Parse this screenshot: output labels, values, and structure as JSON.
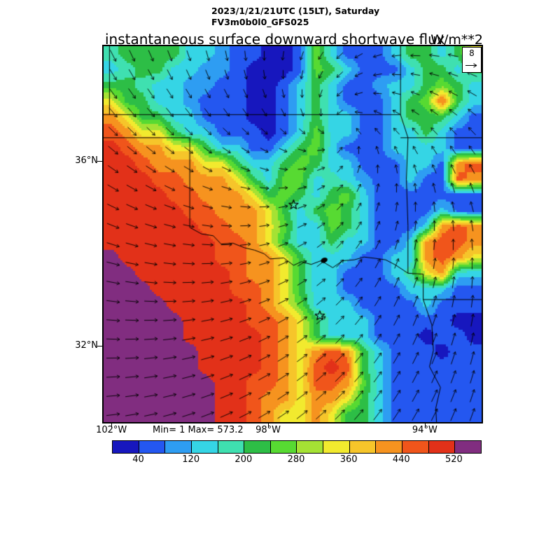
{
  "chart_data": {
    "type": "heatmap",
    "datetime": "2023/1/21/21UTC (15LT), Saturday",
    "model": "FV3m0b0l0_GFS025",
    "title": "instantaneous surface downward shortwave flux",
    "units": "W/m**2",
    "min": 1,
    "max": 573.2,
    "minmax_label": "Min= 1 Max= 573.2",
    "lon_range": [
      -102.2,
      -92.55
    ],
    "lat_range": [
      30.35,
      38.48
    ],
    "lon_ticks": [
      {
        "lon": -102,
        "label": "102°W"
      },
      {
        "lon": -98,
        "label": "98°W"
      },
      {
        "lon": -94,
        "label": "94°W"
      }
    ],
    "lat_ticks": [
      {
        "lat": 36,
        "label": "36°N"
      },
      {
        "lat": 32,
        "label": "32°N"
      }
    ],
    "levels": [
      0,
      40,
      80,
      120,
      160,
      200,
      240,
      280,
      320,
      360,
      400,
      440,
      480,
      520,
      560
    ],
    "colors": [
      "#1717BE",
      "#2457F0",
      "#2E9DF2",
      "#35D5E5",
      "#3FE0B0",
      "#2DBE46",
      "#57DA32",
      "#A5E234",
      "#F2EA2E",
      "#F6C52A",
      "#F6931F",
      "#F0551B",
      "#E23119",
      "#812D80"
    ],
    "colorbar_ticks": [
      {
        "value": 40,
        "label": "40"
      },
      {
        "value": 120,
        "label": "120"
      },
      {
        "value": 200,
        "label": "200"
      },
      {
        "value": 280,
        "label": "280"
      },
      {
        "value": 360,
        "label": "360"
      },
      {
        "value": 440,
        "label": "440"
      },
      {
        "value": 520,
        "label": "520"
      }
    ],
    "wind": {
      "ref_label": "8",
      "center": [
        0.62,
        0.22
      ],
      "inward": 1.0,
      "spacing_px": 27,
      "len_min": 10,
      "len_max": 19
    },
    "markers": {
      "stars": [
        [
          -97.35,
          35.05
        ],
        [
          -96.68,
          32.65
        ]
      ],
      "lake": [
        -96.57,
        33.85
      ]
    },
    "borders": [
      [
        [
          -102.2,
          37
        ],
        [
          -94.62,
          37
        ]
      ],
      [
        [
          -102.05,
          38.48
        ],
        [
          -102.05,
          37
        ]
      ],
      [
        [
          -94.62,
          38.48
        ],
        [
          -94.62,
          37
        ]
      ],
      [
        [
          -94.62,
          36.5
        ],
        [
          -92.55,
          36.5
        ]
      ],
      [
        [
          -94.62,
          37
        ],
        [
          -94.43,
          36.5
        ],
        [
          -94.47,
          35.6
        ],
        [
          -94.43,
          34.6
        ],
        [
          -94.43,
          33.57
        ]
      ],
      [
        [
          -102.2,
          36.5
        ],
        [
          -100,
          36.5
        ]
      ],
      [
        [
          -100,
          36.5
        ],
        [
          -100,
          34.56
        ]
      ],
      [
        [
          -100,
          34.56
        ],
        [
          -99.7,
          34.42
        ],
        [
          -99.4,
          34.38
        ],
        [
          -99.2,
          34.2
        ],
        [
          -98.9,
          34.22
        ],
        [
          -98.6,
          34.12
        ],
        [
          -98.35,
          34.07
        ],
        [
          -98.1,
          33.99
        ],
        [
          -97.95,
          33.88
        ],
        [
          -97.6,
          33.9
        ],
        [
          -97.35,
          33.74
        ],
        [
          -97.15,
          33.82
        ],
        [
          -96.9,
          33.76
        ],
        [
          -96.65,
          33.84
        ],
        [
          -96.35,
          33.69
        ],
        [
          -96.1,
          33.84
        ],
        [
          -95.8,
          33.86
        ],
        [
          -95.55,
          33.92
        ],
        [
          -95.25,
          33.89
        ],
        [
          -95.0,
          33.86
        ],
        [
          -94.75,
          33.75
        ],
        [
          -94.43,
          33.57
        ]
      ],
      [
        [
          -94.43,
          33.57
        ],
        [
          -94.04,
          33.55
        ],
        [
          -94.04,
          33.0
        ]
      ],
      [
        [
          -94.04,
          33.0
        ],
        [
          -92.55,
          33.0
        ]
      ],
      [
        [
          -94.04,
          33.0
        ],
        [
          -93.82,
          32.45
        ],
        [
          -93.78,
          31.9
        ],
        [
          -93.88,
          31.55
        ],
        [
          -93.6,
          31.1
        ],
        [
          -93.72,
          30.65
        ],
        [
          -93.7,
          30.35
        ]
      ]
    ],
    "grid": {
      "ncols": 24,
      "nrows": 24,
      "values": [
        [
          180,
          220,
          220,
          220,
          220,
          140,
          140,
          100,
          60,
          60,
          20,
          20,
          60,
          260,
          140,
          60,
          60,
          60,
          140,
          220,
          220,
          140,
          220,
          340
        ],
        [
          140,
          180,
          220,
          220,
          140,
          140,
          100,
          100,
          60,
          20,
          20,
          20,
          60,
          260,
          220,
          140,
          60,
          60,
          60,
          140,
          220,
          220,
          140,
          220
        ],
        [
          220,
          220,
          180,
          140,
          140,
          100,
          100,
          60,
          60,
          20,
          20,
          60,
          140,
          220,
          140,
          60,
          60,
          100,
          140,
          140,
          220,
          260,
          220,
          140
        ],
        [
          340,
          220,
          220,
          140,
          140,
          100,
          60,
          60,
          60,
          20,
          20,
          60,
          140,
          220,
          140,
          60,
          60,
          60,
          140,
          220,
          260,
          460,
          220,
          140
        ],
        [
          420,
          340,
          220,
          220,
          140,
          140,
          60,
          60,
          60,
          20,
          20,
          60,
          140,
          220,
          140,
          140,
          60,
          60,
          140,
          220,
          220,
          220,
          140,
          60
        ],
        [
          460,
          420,
          340,
          340,
          220,
          140,
          140,
          60,
          60,
          60,
          20,
          60,
          140,
          260,
          140,
          140,
          60,
          60,
          140,
          140,
          220,
          140,
          60,
          60
        ],
        [
          500,
          460,
          420,
          420,
          340,
          340,
          220,
          140,
          140,
          60,
          60,
          140,
          220,
          260,
          140,
          60,
          60,
          60,
          140,
          140,
          140,
          140,
          60,
          60
        ],
        [
          500,
          500,
          460,
          420,
          420,
          420,
          340,
          340,
          220,
          140,
          140,
          220,
          260,
          220,
          140,
          140,
          60,
          60,
          60,
          140,
          140,
          60,
          420,
          460
        ],
        [
          500,
          500,
          500,
          460,
          460,
          420,
          420,
          420,
          340,
          220,
          140,
          260,
          260,
          140,
          180,
          140,
          100,
          60,
          60,
          140,
          60,
          60,
          460,
          420
        ],
        [
          500,
          500,
          500,
          500,
          460,
          460,
          420,
          420,
          420,
          340,
          220,
          260,
          220,
          140,
          220,
          260,
          140,
          60,
          60,
          60,
          60,
          60,
          60,
          60
        ],
        [
          500,
          500,
          500,
          500,
          500,
          460,
          460,
          420,
          420,
          420,
          340,
          220,
          140,
          220,
          260,
          220,
          140,
          60,
          60,
          60,
          60,
          140,
          60,
          60
        ],
        [
          500,
          500,
          500,
          500,
          500,
          500,
          460,
          460,
          420,
          420,
          340,
          260,
          140,
          140,
          260,
          220,
          140,
          60,
          60,
          60,
          140,
          420,
          460,
          420
        ],
        [
          500,
          500,
          500,
          500,
          500,
          500,
          500,
          460,
          460,
          420,
          340,
          220,
          140,
          140,
          220,
          140,
          140,
          60,
          60,
          140,
          420,
          460,
          460,
          420
        ],
        [
          540,
          500,
          500,
          500,
          500,
          500,
          500,
          460,
          460,
          420,
          420,
          340,
          220,
          140,
          140,
          140,
          60,
          60,
          140,
          140,
          420,
          460,
          420,
          340
        ],
        [
          540,
          540,
          500,
          500,
          500,
          500,
          500,
          500,
          460,
          420,
          420,
          340,
          220,
          140,
          140,
          60,
          60,
          60,
          140,
          180,
          340,
          420,
          140,
          140
        ],
        [
          540,
          540,
          540,
          500,
          500,
          500,
          500,
          500,
          460,
          460,
          420,
          340,
          220,
          140,
          140,
          60,
          60,
          60,
          60,
          140,
          140,
          140,
          60,
          60
        ],
        [
          540,
          540,
          540,
          540,
          500,
          500,
          500,
          500,
          500,
          460,
          420,
          340,
          260,
          140,
          140,
          140,
          60,
          60,
          60,
          60,
          140,
          60,
          60,
          60
        ],
        [
          540,
          540,
          540,
          540,
          540,
          500,
          500,
          500,
          500,
          460,
          460,
          420,
          340,
          220,
          140,
          140,
          140,
          60,
          60,
          60,
          60,
          60,
          20,
          20
        ],
        [
          540,
          540,
          540,
          540,
          540,
          500,
          500,
          500,
          500,
          500,
          460,
          420,
          340,
          220,
          140,
          140,
          140,
          60,
          60,
          60,
          20,
          60,
          60,
          20
        ],
        [
          540,
          540,
          540,
          540,
          540,
          540,
          500,
          500,
          500,
          500,
          460,
          420,
          340,
          420,
          460,
          420,
          220,
          140,
          60,
          60,
          60,
          20,
          60,
          60
        ],
        [
          540,
          540,
          540,
          540,
          540,
          540,
          500,
          500,
          500,
          500,
          460,
          420,
          340,
          460,
          500,
          460,
          220,
          140,
          60,
          60,
          60,
          60,
          60,
          60
        ],
        [
          540,
          540,
          540,
          540,
          540,
          540,
          540,
          500,
          500,
          460,
          460,
          420,
          340,
          460,
          460,
          420,
          260,
          140,
          60,
          60,
          60,
          60,
          60,
          60
        ],
        [
          540,
          540,
          540,
          540,
          540,
          540,
          540,
          500,
          500,
          460,
          420,
          420,
          340,
          420,
          420,
          340,
          220,
          140,
          60,
          60,
          60,
          60,
          60,
          60
        ],
        [
          540,
          540,
          540,
          540,
          540,
          540,
          540,
          500,
          500,
          460,
          420,
          340,
          340,
          420,
          340,
          220,
          220,
          140,
          60,
          60,
          60,
          60,
          60,
          60
        ]
      ]
    }
  }
}
